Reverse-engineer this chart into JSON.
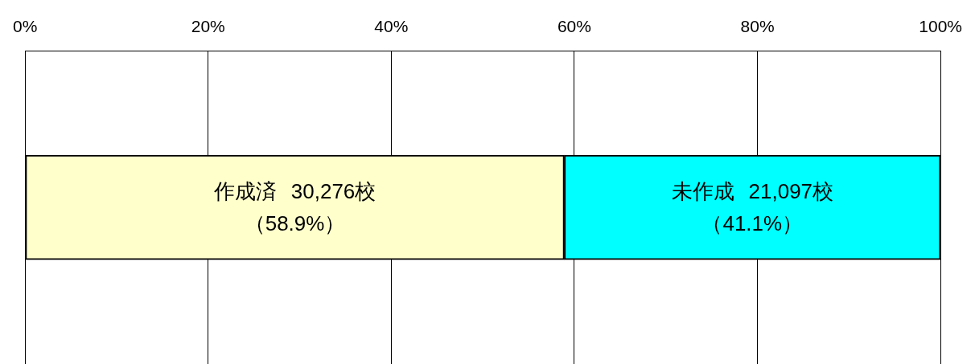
{
  "chart_data": {
    "type": "bar",
    "orientation": "horizontal",
    "stacked": true,
    "categories": [
      null
    ],
    "series": [
      {
        "name": "作成済",
        "color": "#ffffcc",
        "values": [
          58.9
        ],
        "value_labels": [
          "（58.9%）"
        ]
      },
      {
        "name": "未作成",
        "color": "#00ffff",
        "values": [
          41.1
        ],
        "value_labels": [
          "（41.1%）"
        ]
      }
    ],
    "xlim": [
      0,
      100
    ],
    "xticks": [
      {
        "value": 0,
        "label": "0%"
      },
      {
        "value": 20,
        "label": "20%"
      },
      {
        "value": 40,
        "label": "40%"
      },
      {
        "value": 60,
        "label": "60%"
      },
      {
        "value": 80,
        "label": "80%"
      },
      {
        "value": 100,
        "label": "100%"
      }
    ],
    "annotations": [
      "30,276校",
      "21,097校"
    ],
    "grid": "x",
    "tick_labels": "x",
    "legend": false
  }
}
